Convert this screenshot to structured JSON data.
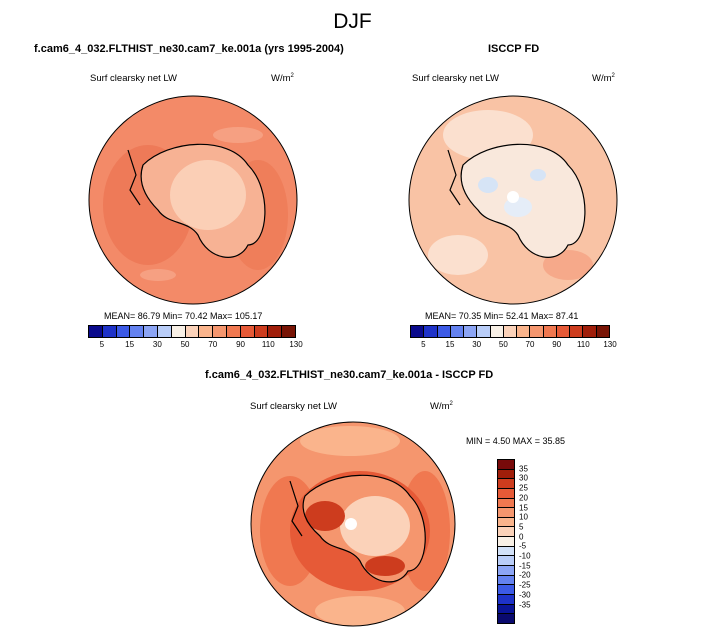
{
  "main_title": "DJF",
  "panels": {
    "left": {
      "title": "f.cam6_4_032.FLTHIST_ne30.cam7_ke.001a (yrs 1995-2004)",
      "variable": "Surf clearsky net LW",
      "units_base": "W/m",
      "units_exp": "2",
      "stats": "MEAN=  86.79  Min=  70.42  Max= 105.17"
    },
    "right": {
      "title": "ISCCP FD",
      "variable": "Surf clearsky net LW",
      "units_base": "W/m",
      "units_exp": "2",
      "stats": "MEAN=  70.35  Min=  52.41  Max=  87.41"
    },
    "diff": {
      "title": "f.cam6_4_032.FLTHIST_ne30.cam7_ke.001a - ISCCP FD",
      "variable": "Surf clearsky net LW",
      "units_base": "W/m",
      "units_exp": "2",
      "stats": "MIN =   4.50 MAX =  35.85"
    }
  },
  "colorbar_top": {
    "colors": [
      "#0a0a8c",
      "#1e32c8",
      "#3c5ae6",
      "#6482f0",
      "#8ca5f5",
      "#b9cdf8",
      "#f8f0e6",
      "#fbd2b9",
      "#fab48c",
      "#f5966e",
      "#f07850",
      "#e65a37",
      "#cd3c1e",
      "#a01e0a",
      "#781405"
    ],
    "labels": [
      "5",
      "15",
      "30",
      "50",
      "70",
      "90",
      "110",
      "130"
    ]
  },
  "colorbar_diff": {
    "colors": [
      "#780a0a",
      "#a01e0a",
      "#cd3c1e",
      "#e65a37",
      "#f07850",
      "#f5966e",
      "#fab48c",
      "#fbd2b9",
      "#f8f0e6",
      "#d2e1f8",
      "#b9cdf8",
      "#8ca5f5",
      "#6482f0",
      "#3c5ae6",
      "#1e32c8",
      "#0a1496",
      "#0a0a6e"
    ],
    "labels": [
      "35",
      "30",
      "25",
      "20",
      "15",
      "10",
      "5",
      "0",
      "-5",
      "-10",
      "-15",
      "-20",
      "-25",
      "-30",
      "-35"
    ]
  }
}
